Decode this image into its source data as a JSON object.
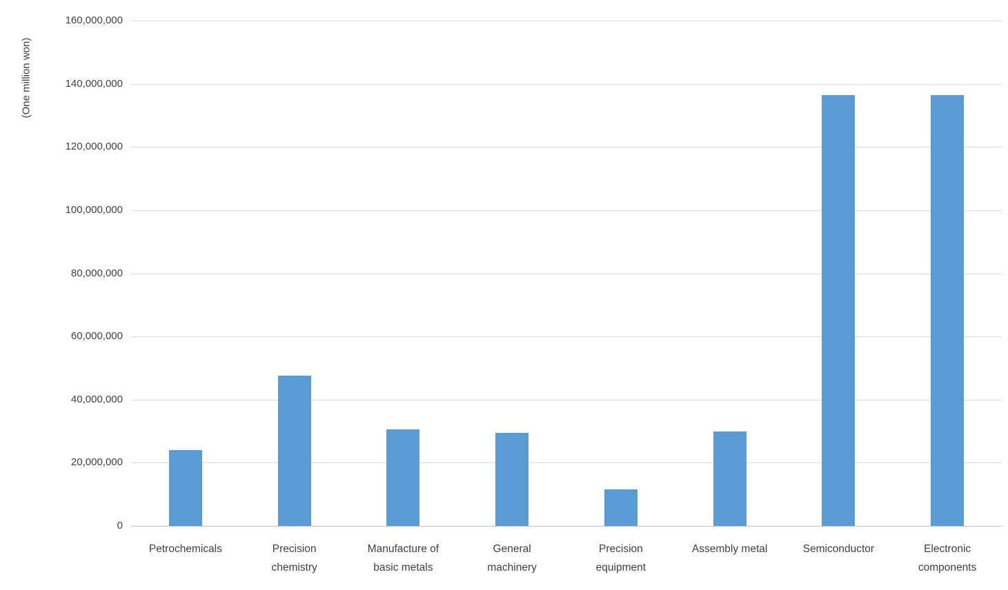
{
  "chart_data": {
    "type": "bar",
    "title": "",
    "xlabel": "",
    "ylabel": "(One million won)",
    "categories": [
      "Petrochemicals",
      "Precision chemistry",
      "Manufacture of basic metals",
      "General machinery",
      "Precision equipment",
      "Assembly metal",
      "Semiconductor",
      "Electronic components"
    ],
    "values": [
      24000000,
      47500000,
      30500000,
      29500000,
      11500000,
      30000000,
      136500000,
      136500000
    ],
    "ylim": [
      0,
      160000000
    ],
    "ytick_interval": 20000000,
    "ytick_labels": [
      "0",
      "20,000,000",
      "40,000,000",
      "60,000,000",
      "80,000,000",
      "100,000,000",
      "120,000,000",
      "140,000,000",
      "160,000,000"
    ],
    "grid": true,
    "legend_position": "none",
    "bar_color": "#5b9bd5",
    "gridline_color": "#d9d9d9",
    "axis_line_color": "#bfbfbf",
    "axis_text_color": "#404040"
  }
}
